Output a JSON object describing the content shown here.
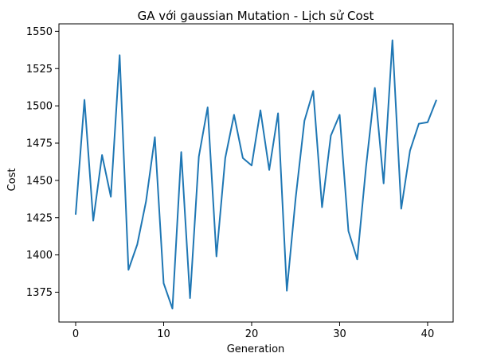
{
  "chart_data": {
    "type": "line",
    "title": "GA với gaussian Mutation - Lịch sử Cost",
    "xlabel": "Generation",
    "ylabel": "Cost",
    "xlim": [
      -1.9,
      42.9
    ],
    "ylim": [
      1355,
      1555
    ],
    "xticks": [
      0,
      10,
      20,
      30,
      40
    ],
    "yticks": [
      1375,
      1400,
      1425,
      1450,
      1475,
      1500,
      1525,
      1550
    ],
    "grid": false,
    "legend": "none",
    "series_color": "#1f77b4",
    "series": [
      {
        "x": [
          0,
          1,
          2,
          3,
          4,
          5,
          6,
          7,
          8,
          9,
          10,
          11,
          12,
          13,
          14,
          15,
          16,
          17,
          18,
          19,
          20,
          21,
          22,
          23,
          24,
          25,
          26,
          27,
          28,
          29,
          30,
          31,
          32,
          33,
          34,
          35,
          36,
          37,
          38,
          39,
          40,
          41
        ],
        "values": [
          1427,
          1504,
          1423,
          1467,
          1439,
          1534,
          1390,
          1407,
          1436,
          1479,
          1381,
          1364,
          1469,
          1371,
          1466,
          1499,
          1399,
          1465,
          1494,
          1465,
          1460,
          1497,
          1457,
          1495,
          1376,
          1438,
          1490,
          1510,
          1432,
          1480,
          1494,
          1416,
          1397,
          1459,
          1512,
          1448,
          1544,
          1431,
          1470,
          1488,
          1489,
          1504
        ]
      }
    ]
  }
}
